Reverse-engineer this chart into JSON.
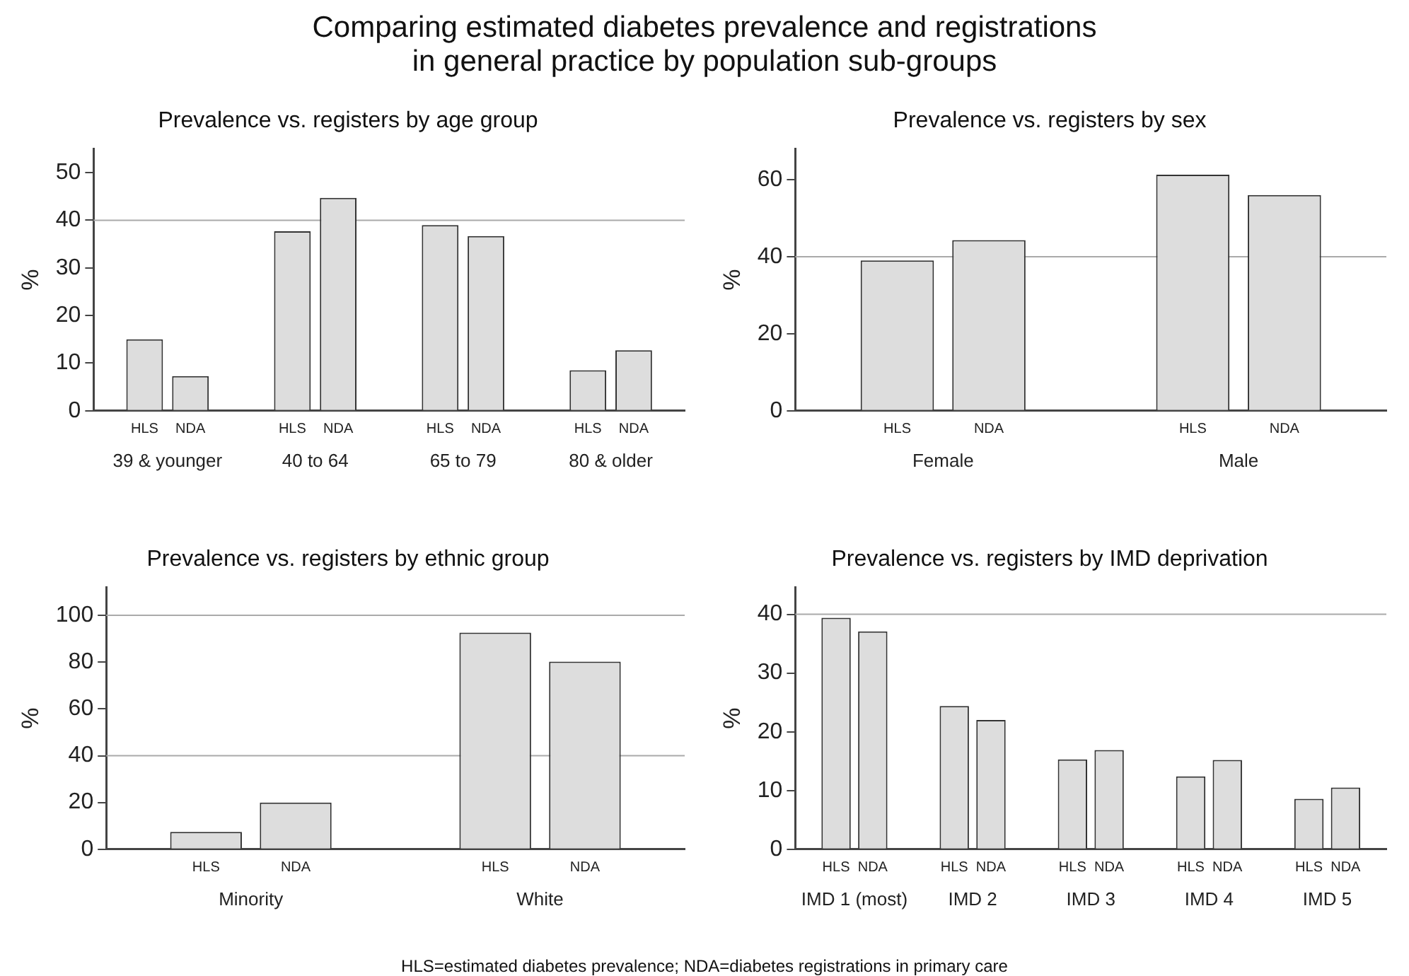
{
  "chart_data": [
    {
      "type": "bar",
      "title": "Prevalence vs. registers by age group",
      "ylabel": "%",
      "categories": [
        "39 & younger",
        "40 to 64",
        "65 to 79",
        "80 & older"
      ],
      "series": [
        {
          "name": "HLS",
          "color": "#dddddd",
          "values": [
            15,
            37.7,
            39,
            8.5
          ]
        },
        {
          "name": "NDA",
          "color": "#dddddd",
          "values": [
            7.3,
            44.7,
            36.7,
            12.7
          ]
        }
      ],
      "ylim": [
        0,
        55
      ],
      "yticks": [
        0,
        10,
        20,
        30,
        40,
        50
      ],
      "grid": false,
      "ref_lines": [
        {
          "axis": "y",
          "value": 40
        }
      ],
      "annotations": [
        "Comparing estimated diabetes prevalence and registrations\nin general practice by population sub-groups"
      ]
    },
    {
      "type": "bar",
      "title": "Prevalence vs. registers by sex",
      "ylabel": "%",
      "categories": [
        "Female",
        "Male"
      ],
      "series": [
        {
          "name": "HLS",
          "color": "#dddddd",
          "values": [
            39,
            61.3
          ]
        },
        {
          "name": "NDA",
          "color": "#dddddd",
          "values": [
            44.3,
            56
          ]
        }
      ],
      "ylim": [
        0,
        68
      ],
      "yticks": [
        0,
        20,
        40,
        60
      ],
      "grid": false,
      "ref_lines": [
        {
          "axis": "y",
          "value": 40
        }
      ]
    },
    {
      "type": "bar",
      "title": "Prevalence vs. registers by ethnic group",
      "ylabel": "%",
      "categories": [
        "Minority",
        "White"
      ],
      "series": [
        {
          "name": "HLS",
          "color": "#dddddd",
          "values": [
            7.4,
            92.6
          ]
        },
        {
          "name": "NDA",
          "color": "#dddddd",
          "values": [
            20,
            80.2
          ]
        }
      ],
      "ylim": [
        0,
        112
      ],
      "yticks": [
        0,
        20,
        40,
        60,
        80,
        100
      ],
      "grid": false,
      "ref_lines": [
        {
          "axis": "y",
          "value": 40
        },
        {
          "axis": "y",
          "value": 100
        }
      ]
    },
    {
      "type": "bar",
      "title": "Prevalence vs. registers by IMD deprivation",
      "ylabel": "%",
      "categories": [
        "IMD 1 (most)",
        "IMD 2",
        "IMD 3",
        "IMD 4",
        "IMD 5"
      ],
      "series": [
        {
          "name": "HLS",
          "color": "#dddddd",
          "values": [
            39.4,
            24.4,
            15.3,
            12.4,
            8.6
          ]
        },
        {
          "name": "NDA",
          "color": "#dddddd",
          "values": [
            37.1,
            22,
            16.9,
            15.2,
            10.5
          ]
        }
      ],
      "ylim": [
        0,
        44.6
      ],
      "yticks": [
        0,
        10,
        20,
        30,
        40
      ],
      "grid": false,
      "ref_lines": [
        {
          "axis": "y",
          "value": 40
        }
      ],
      "annotations": [
        "HLS=estimated diabetes prevalence; NDA=diabetes registrations in primary care"
      ]
    }
  ]
}
